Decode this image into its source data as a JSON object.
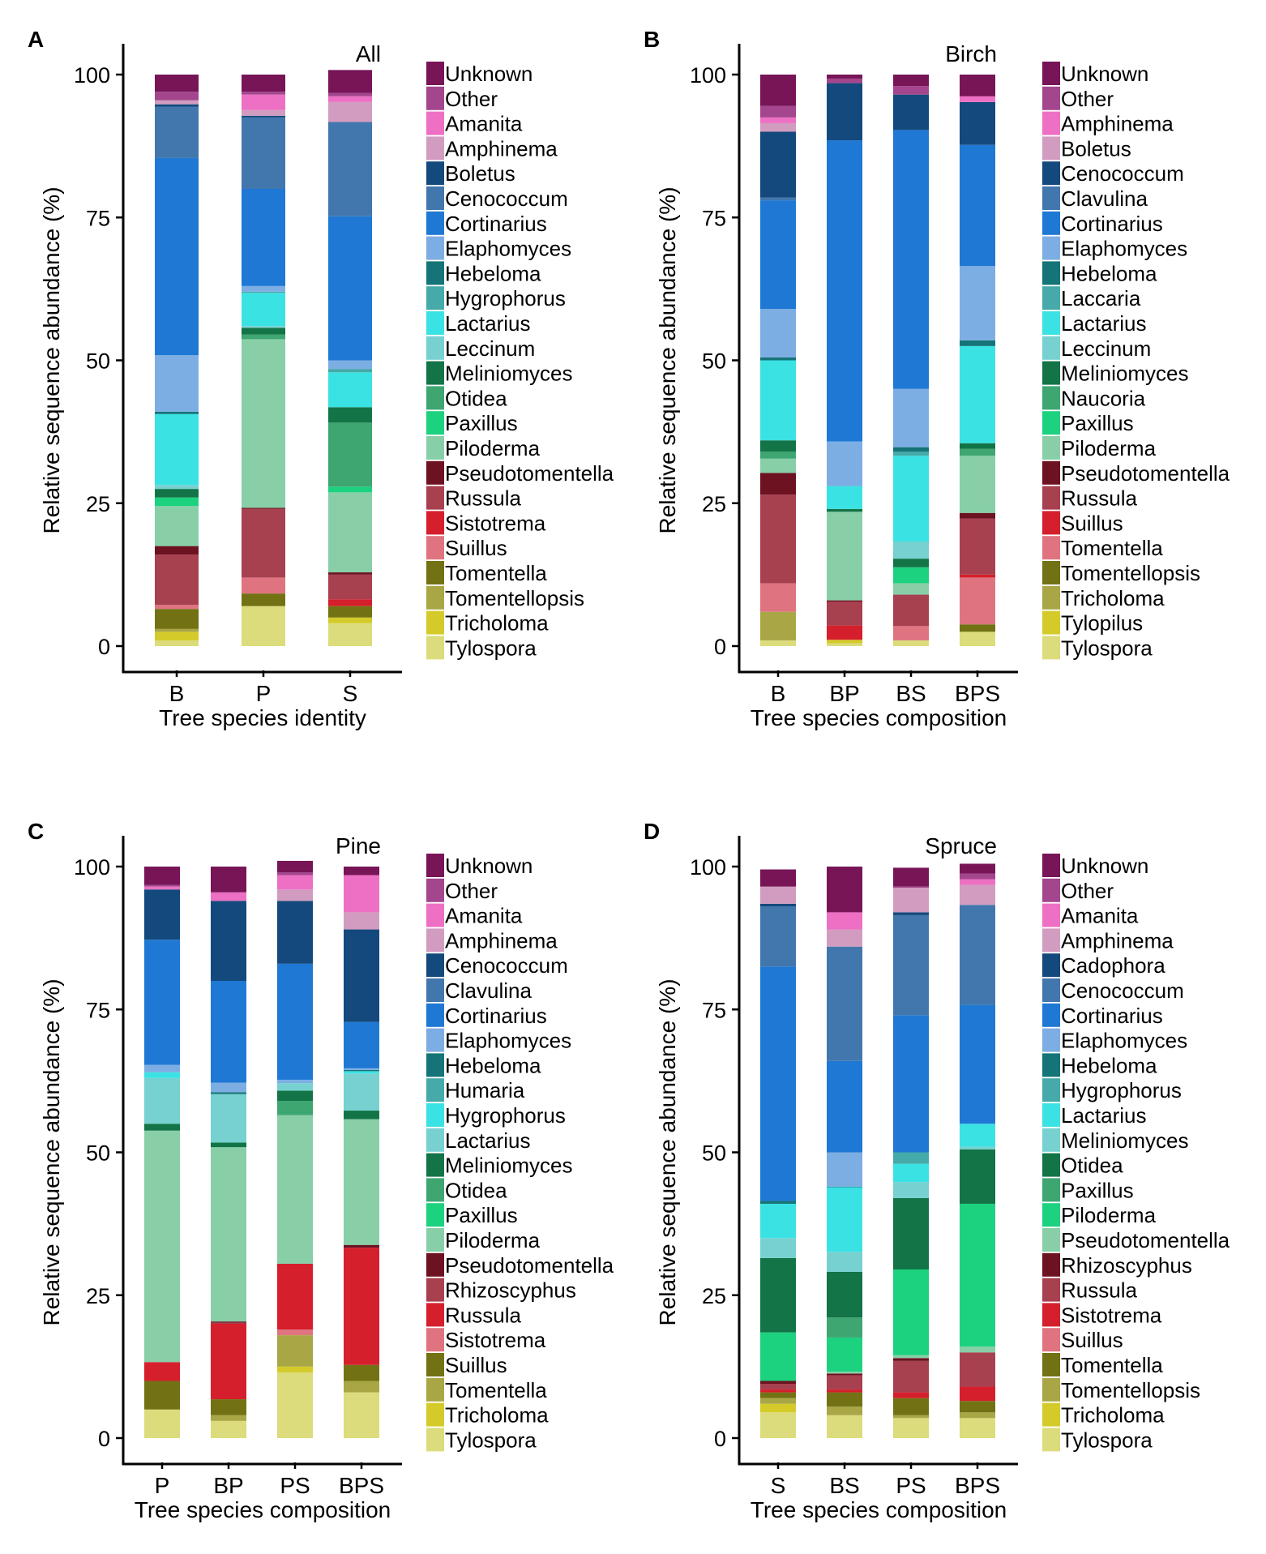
{
  "chart_data": [
    {
      "type": "bar",
      "stacked": true,
      "panel_letter": "A",
      "title": "All",
      "xlabel": "Tree species identity",
      "ylabel": "Relative sequence abundance (%)",
      "ylim": [
        0,
        100
      ],
      "yticks": [
        "0",
        "25",
        "50",
        "75",
        "100"
      ],
      "categories": [
        "B",
        "P",
        "S"
      ],
      "series": [
        {
          "name": "Tylospora",
          "color": "#dcdc7c",
          "values": [
            1.0,
            7.0,
            4.0
          ]
        },
        {
          "name": "Tricholoma",
          "color": "#d4cb2a",
          "values": [
            1.5,
            0,
            1.0
          ]
        },
        {
          "name": "Tomentellopsis",
          "color": "#a9a646",
          "values": [
            0.5,
            0,
            0
          ]
        },
        {
          "name": "Tomentella",
          "color": "#727214",
          "values": [
            3.5,
            2.2,
            2.0
          ]
        },
        {
          "name": "Suillus",
          "color": "#df7480",
          "values": [
            0.7,
            2.8,
            0
          ]
        },
        {
          "name": "Sistotrema",
          "color": "#d51f2c",
          "values": [
            0,
            0,
            1.2
          ]
        },
        {
          "name": "Russula",
          "color": "#a7404f",
          "values": [
            8.8,
            12.0,
            4.3
          ]
        },
        {
          "name": "Pseudotomentella",
          "color": "#6c1220",
          "values": [
            1.5,
            0.2,
            0.4
          ]
        },
        {
          "name": "Piloderma",
          "color": "#88cfa8",
          "values": [
            7.0,
            29.5,
            14.0
          ]
        },
        {
          "name": "Paxillus",
          "color": "#1dd27f",
          "values": [
            1.5,
            0,
            1.0
          ]
        },
        {
          "name": "Otidea",
          "color": "#3ea671",
          "values": [
            0,
            0.8,
            11.2
          ]
        },
        {
          "name": "Meliniomyces",
          "color": "#127447",
          "values": [
            1.5,
            1.2,
            2.7
          ]
        },
        {
          "name": "Leccinum",
          "color": "#77d1d0",
          "values": [
            0.7,
            0.3,
            0
          ]
        },
        {
          "name": "Lactarius",
          "color": "#3ae2e4",
          "values": [
            12.4,
            5.8,
            6.1
          ]
        },
        {
          "name": "Hygrophorus",
          "color": "#45aaa9",
          "values": [
            0,
            0.2,
            0.6
          ]
        },
        {
          "name": "Hebeloma",
          "color": "#147478",
          "values": [
            0.4,
            0,
            0
          ]
        },
        {
          "name": "Elaphomyces",
          "color": "#7daee3",
          "values": [
            9.9,
            1.0,
            1.5
          ]
        },
        {
          "name": "Cortinarius",
          "color": "#1f78d4",
          "values": [
            34.5,
            17.0,
            25.2
          ]
        },
        {
          "name": "Cenococcum",
          "color": "#4277ad",
          "values": [
            9.0,
            12.5,
            16.5
          ]
        },
        {
          "name": "Boletus",
          "color": "#13497c",
          "values": [
            0.4,
            0.3,
            0
          ]
        },
        {
          "name": "Amphinema",
          "color": "#d29cc0",
          "values": [
            0.7,
            1.0,
            3.5
          ]
        },
        {
          "name": "Amanita",
          "color": "#ed70c4",
          "values": [
            0,
            2.7,
            1.0
          ]
        },
        {
          "name": "Other",
          "color": "#a3468e",
          "values": [
            1.5,
            0.5,
            0.6
          ]
        },
        {
          "name": "Unknown",
          "color": "#771557",
          "values": [
            3.0,
            3.0,
            4.0
          ]
        }
      ]
    },
    {
      "type": "bar",
      "stacked": true,
      "panel_letter": "B",
      "title": "Birch",
      "xlabel": "Tree species composition",
      "ylabel": "Relative sequence abundance (%)",
      "ylim": [
        0,
        100
      ],
      "yticks": [
        "0",
        "25",
        "50",
        "75",
        "100"
      ],
      "categories": [
        "B",
        "BP",
        "BS",
        "BPS"
      ],
      "series": [
        {
          "name": "Tylospora",
          "color": "#dcdc7c",
          "values": [
            1.0,
            0.5,
            1.0,
            2.5
          ]
        },
        {
          "name": "Tylopilus",
          "color": "#d4cb2a",
          "values": [
            0,
            0.6,
            0,
            0
          ]
        },
        {
          "name": "Tricholoma",
          "color": "#a9a646",
          "values": [
            5.0,
            0,
            0,
            0
          ]
        },
        {
          "name": "Tomentellopsis",
          "color": "#727214",
          "values": [
            0,
            0,
            0,
            1.3
          ]
        },
        {
          "name": "Tomentella",
          "color": "#df7480",
          "values": [
            5.0,
            0,
            2.5,
            8.2
          ]
        },
        {
          "name": "Suillus",
          "color": "#d51f2c",
          "values": [
            0,
            2.5,
            0,
            0.5
          ]
        },
        {
          "name": "Russula",
          "color": "#a7404f",
          "values": [
            15.5,
            4.2,
            5.5,
            9.8
          ]
        },
        {
          "name": "Pseudotomentella",
          "color": "#6c1220",
          "values": [
            3.8,
            0.2,
            0,
            1.0
          ]
        },
        {
          "name": "Piloderma",
          "color": "#88cfa8",
          "values": [
            2.5,
            15.5,
            2.0,
            10.0
          ]
        },
        {
          "name": "Paxillus",
          "color": "#1dd27f",
          "values": [
            0,
            0,
            2.8,
            0
          ]
        },
        {
          "name": "Naucoria",
          "color": "#3ea671",
          "values": [
            1.2,
            0,
            0,
            1.2
          ]
        },
        {
          "name": "Meliniomyces",
          "color": "#127447",
          "values": [
            2.0,
            0.5,
            1.5,
            1.0
          ]
        },
        {
          "name": "Leccinum",
          "color": "#77d1d0",
          "values": [
            0,
            0,
            3.0,
            0
          ]
        },
        {
          "name": "Lactarius",
          "color": "#3ae2e4",
          "values": [
            14.0,
            4.0,
            15.0,
            17.0
          ]
        },
        {
          "name": "Laccaria",
          "color": "#45aaa9",
          "values": [
            0,
            0,
            0.7,
            0
          ]
        },
        {
          "name": "Hebeloma",
          "color": "#147478",
          "values": [
            0.5,
            0,
            0.8,
            1.0
          ]
        },
        {
          "name": "Elaphomyces",
          "color": "#7daee3",
          "values": [
            8.5,
            7.8,
            10.2,
            13.0
          ]
        },
        {
          "name": "Cortinarius",
          "color": "#1f78d4",
          "values": [
            19.0,
            52.7,
            45.3,
            21.2
          ]
        },
        {
          "name": "Clavulina",
          "color": "#4277ad",
          "values": [
            0.5,
            0,
            0,
            0
          ]
        },
        {
          "name": "Cenococcum",
          "color": "#13497c",
          "values": [
            11.5,
            10.0,
            6.2,
            7.5
          ]
        },
        {
          "name": "Boletus",
          "color": "#d29cc0",
          "values": [
            1.5,
            0,
            0,
            0
          ]
        },
        {
          "name": "Amphinema",
          "color": "#ed70c4",
          "values": [
            1.0,
            0,
            0,
            1.0
          ]
        },
        {
          "name": "Other",
          "color": "#a3468e",
          "values": [
            2.0,
            0.8,
            1.5,
            0
          ]
        },
        {
          "name": "Unknown",
          "color": "#771557",
          "values": [
            5.5,
            0.7,
            2.0,
            3.8
          ]
        }
      ]
    },
    {
      "type": "bar",
      "stacked": true,
      "panel_letter": "C",
      "title": "Pine",
      "xlabel": "Tree species composition",
      "ylabel": "Relative sequence abundance (%)",
      "ylim": [
        0,
        100
      ],
      "yticks": [
        "0",
        "25",
        "50",
        "75",
        "100"
      ],
      "categories": [
        "P",
        "BP",
        "PS",
        "BPS"
      ],
      "series": [
        {
          "name": "Tylospora",
          "color": "#dcdc7c",
          "values": [
            5.0,
            3.0,
            11.5,
            8.0
          ]
        },
        {
          "name": "Tricholoma",
          "color": "#d4cb2a",
          "values": [
            0,
            0,
            1.0,
            0
          ]
        },
        {
          "name": "Tomentella",
          "color": "#a9a646",
          "values": [
            0,
            1.0,
            5.5,
            2.0
          ]
        },
        {
          "name": "Suillus",
          "color": "#727214",
          "values": [
            5.0,
            2.8,
            0,
            2.8
          ]
        },
        {
          "name": "Sistotrema",
          "color": "#df7480",
          "values": [
            0,
            0,
            1.0,
            0
          ]
        },
        {
          "name": "Russula",
          "color": "#d51f2c",
          "values": [
            3.3,
            13.2,
            11.5,
            20.5
          ]
        },
        {
          "name": "Rhizoscyphus",
          "color": "#a7404f",
          "values": [
            0,
            0.2,
            0,
            0
          ]
        },
        {
          "name": "Pseudotomentella",
          "color": "#6c1220",
          "values": [
            0,
            0.2,
            0,
            0.5
          ]
        },
        {
          "name": "Piloderma",
          "color": "#88cfa8",
          "values": [
            40.5,
            30.5,
            26.0,
            22.0
          ]
        },
        {
          "name": "Paxillus",
          "color": "#1dd27f",
          "values": [
            0,
            0,
            0,
            0
          ]
        },
        {
          "name": "Otidea",
          "color": "#3ea671",
          "values": [
            0,
            0,
            2.5,
            0
          ]
        },
        {
          "name": "Meliniomyces",
          "color": "#127447",
          "values": [
            1.2,
            0.8,
            1.8,
            1.5
          ]
        },
        {
          "name": "Lactarius",
          "color": "#77d1d0",
          "values": [
            8.0,
            8.5,
            1.3,
            6.5
          ]
        },
        {
          "name": "Hygrophorus",
          "color": "#3ae2e4",
          "values": [
            1.0,
            0,
            0,
            0.4
          ]
        },
        {
          "name": "Humaria",
          "color": "#45aaa9",
          "values": [
            0,
            0,
            0,
            0
          ]
        },
        {
          "name": "Hebeloma",
          "color": "#147478",
          "values": [
            0,
            0.3,
            0,
            0.2
          ]
        },
        {
          "name": "Elaphomyces",
          "color": "#7daee3",
          "values": [
            1.3,
            1.7,
            0.6,
            0.3
          ]
        },
        {
          "name": "Cortinarius",
          "color": "#1f78d4",
          "values": [
            21.9,
            17.8,
            20.3,
            8.1
          ]
        },
        {
          "name": "Clavulina",
          "color": "#4277ad",
          "values": [
            0,
            0,
            0,
            0
          ]
        },
        {
          "name": "Cenococcum",
          "color": "#13497c",
          "values": [
            8.8,
            14.0,
            11.0,
            16.2
          ]
        },
        {
          "name": "Amphinema",
          "color": "#d29cc0",
          "values": [
            0,
            0,
            2.0,
            3.0
          ]
        },
        {
          "name": "Amanita",
          "color": "#ed70c4",
          "values": [
            0.5,
            1.5,
            2.5,
            6.5
          ]
        },
        {
          "name": "Other",
          "color": "#a3468e",
          "values": [
            0.3,
            0,
            0.5,
            0
          ]
        },
        {
          "name": "Unknown",
          "color": "#771557",
          "values": [
            3.2,
            4.5,
            2.0,
            1.5
          ]
        }
      ]
    },
    {
      "type": "bar",
      "stacked": true,
      "panel_letter": "D",
      "title": "Spruce",
      "xlabel": "Tree species composition",
      "ylabel": "Relative sequence abundance (%)",
      "ylim": [
        0,
        100
      ],
      "yticks": [
        "0",
        "25",
        "50",
        "75",
        "100"
      ],
      "categories": [
        "S",
        "BS",
        "PS",
        "BPS"
      ],
      "series": [
        {
          "name": "Tylospora",
          "color": "#dcdc7c",
          "values": [
            4.5,
            4.0,
            3.5,
            3.5
          ]
        },
        {
          "name": "Tricholoma",
          "color": "#d4cb2a",
          "values": [
            1.5,
            0,
            0,
            0
          ]
        },
        {
          "name": "Tomentellopsis",
          "color": "#a9a646",
          "values": [
            1.0,
            1.5,
            0.5,
            1.0
          ]
        },
        {
          "name": "Tomentella",
          "color": "#727214",
          "values": [
            1.0,
            2.5,
            3.0,
            2.0
          ]
        },
        {
          "name": "Suillus",
          "color": "#df7480",
          "values": [
            0,
            0,
            0,
            0
          ]
        },
        {
          "name": "Sistotrema",
          "color": "#d51f2c",
          "values": [
            0.5,
            0.5,
            1.0,
            2.5
          ]
        },
        {
          "name": "Russula",
          "color": "#a7404f",
          "values": [
            1.0,
            2.5,
            5.5,
            6.0
          ]
        },
        {
          "name": "Rhizoscyphus",
          "color": "#6c1220",
          "values": [
            0.5,
            0.3,
            0.5,
            0
          ]
        },
        {
          "name": "Pseudotomentella",
          "color": "#88cfa8",
          "values": [
            0,
            0.3,
            0.5,
            1.0
          ]
        },
        {
          "name": "Piloderma",
          "color": "#1dd27f",
          "values": [
            8.5,
            6.0,
            15.0,
            25.0
          ]
        },
        {
          "name": "Paxillus",
          "color": "#3ea671",
          "values": [
            0,
            3.5,
            0,
            0
          ]
        },
        {
          "name": "Otidea",
          "color": "#127447",
          "values": [
            13.0,
            8.0,
            12.5,
            9.5
          ]
        },
        {
          "name": "Meliniomyces",
          "color": "#77d1d0",
          "values": [
            3.5,
            3.5,
            2.8,
            0.5
          ]
        },
        {
          "name": "Lactarius",
          "color": "#3ae2e4",
          "values": [
            6.0,
            11.3,
            3.2,
            4.0
          ]
        },
        {
          "name": "Hygrophorus",
          "color": "#45aaa9",
          "values": [
            0,
            0,
            2.0,
            0
          ]
        },
        {
          "name": "Hebeloma",
          "color": "#147478",
          "values": [
            0.5,
            0.1,
            0,
            0
          ]
        },
        {
          "name": "Elaphomyces",
          "color": "#7daee3",
          "values": [
            0,
            6.0,
            0,
            0
          ]
        },
        {
          "name": "Cortinarius",
          "color": "#1f78d4",
          "values": [
            41.0,
            16.0,
            24.0,
            20.8
          ]
        },
        {
          "name": "Cenococcum",
          "color": "#4277ad",
          "values": [
            10.5,
            20.0,
            17.5,
            17.5
          ]
        },
        {
          "name": "Cadophora",
          "color": "#13497c",
          "values": [
            0.5,
            0,
            0.5,
            0
          ]
        },
        {
          "name": "Amphinema",
          "color": "#d29cc0",
          "values": [
            3.0,
            3.0,
            4.3,
            3.5
          ]
        },
        {
          "name": "Amanita",
          "color": "#ed70c4",
          "values": [
            0,
            3.0,
            0,
            1.0
          ]
        },
        {
          "name": "Other",
          "color": "#a3468e",
          "values": [
            0,
            0,
            0.2,
            1.0
          ]
        },
        {
          "name": "Unknown",
          "color": "#771557",
          "values": [
            3.0,
            8.0,
            3.3,
            1.7
          ]
        }
      ]
    }
  ]
}
